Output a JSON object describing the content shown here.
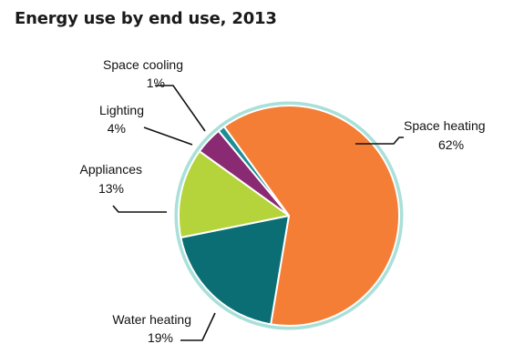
{
  "chart_data": {
    "type": "pie",
    "title": "Energy use by end use, 2013",
    "categories": [
      "Space heating",
      "Water heating",
      "Appliances",
      "Lighting",
      "Space cooling"
    ],
    "values": [
      62,
      19,
      13,
      4,
      1
    ],
    "value_labels": [
      "62%",
      "19%",
      "13%",
      "4%",
      "1%"
    ],
    "unit": "%",
    "legend": "none",
    "grid": false
  },
  "colors": {
    "Space heating": "#f47e35",
    "Water heating": "#0b6e74",
    "Appliances": "#b5d33a",
    "Lighting": "#8a2a72",
    "Space cooling": "#1a8e96",
    "rim": "#a9e0d9",
    "divider": "#ffffff"
  }
}
